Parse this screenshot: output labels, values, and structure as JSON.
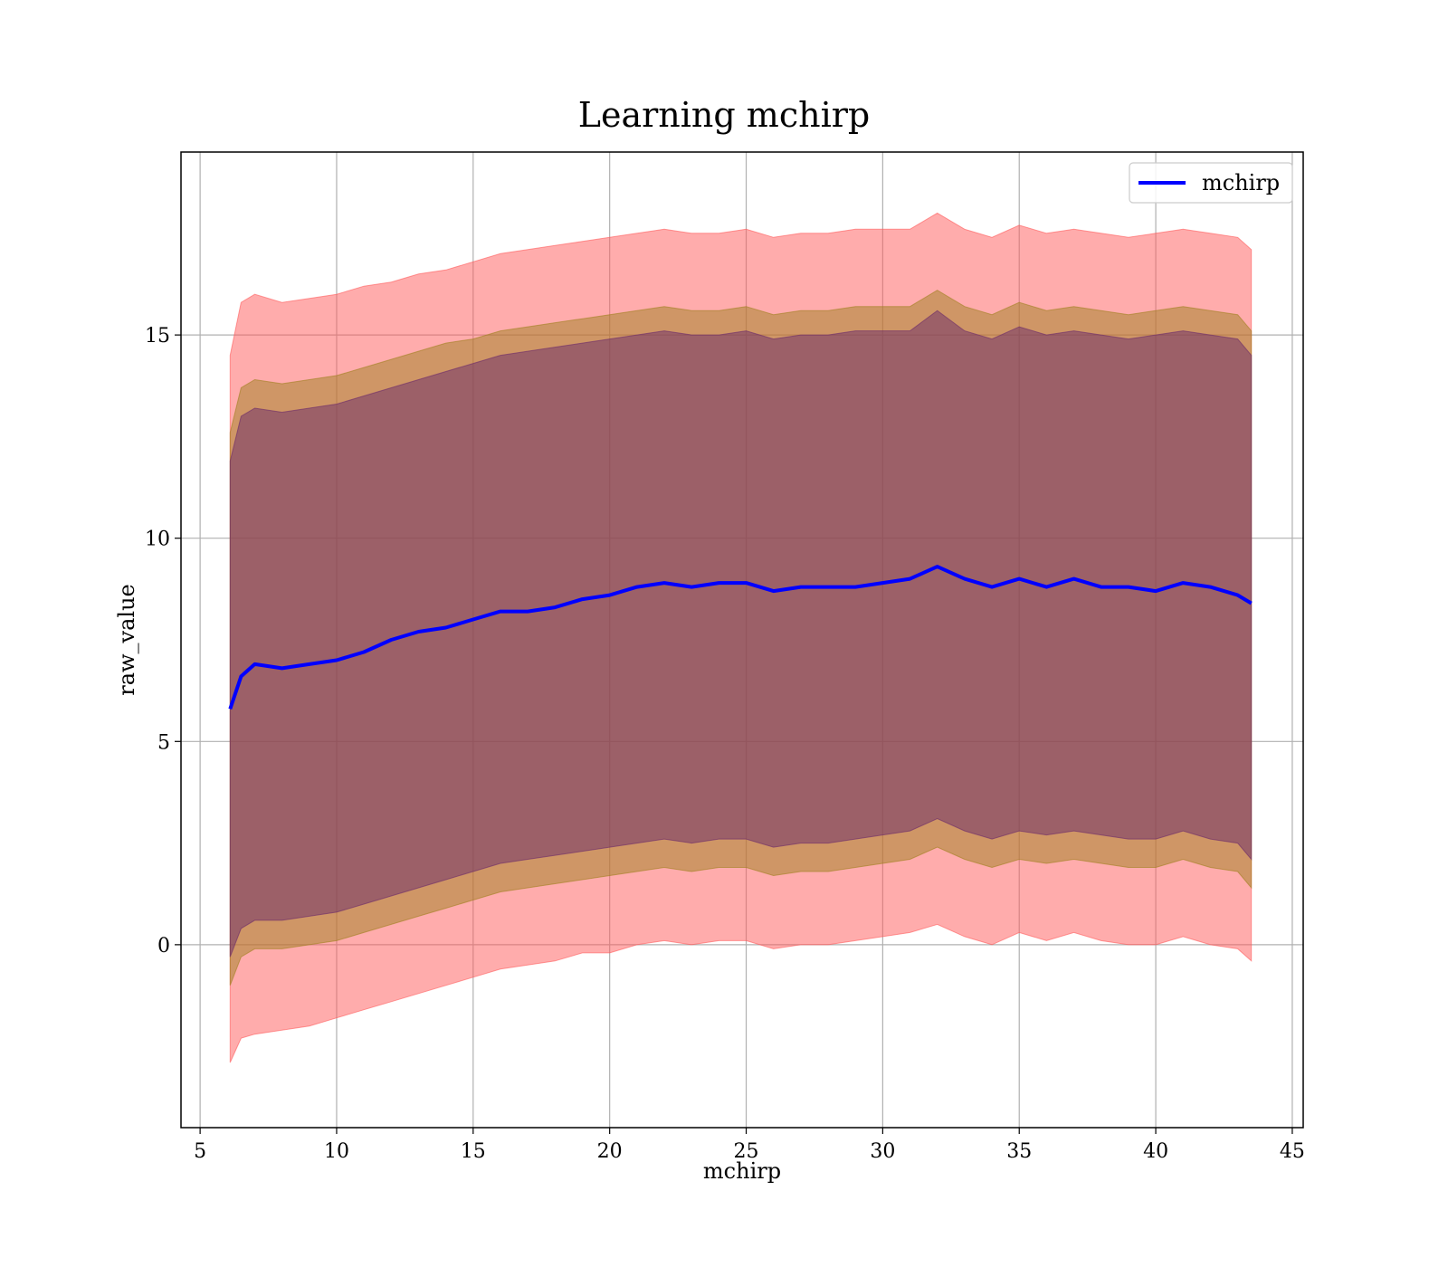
{
  "chart_data": {
    "type": "area",
    "title": "Learning mchirp",
    "xlabel": "mchirp",
    "ylabel": "raw_value",
    "xlim": [
      4.3,
      45.4
    ],
    "ylim": [
      -4.5,
      19.5
    ],
    "xticks": [
      5,
      10,
      15,
      20,
      25,
      30,
      35,
      40,
      45
    ],
    "yticks": [
      0,
      5,
      10,
      15
    ],
    "grid": true,
    "legend": {
      "position": "top-right",
      "entries": [
        "mchirp"
      ]
    },
    "x": [
      6.1,
      6.5,
      7,
      8,
      9,
      10,
      11,
      12,
      13,
      14,
      15,
      16,
      17,
      18,
      19,
      20,
      21,
      22,
      23,
      24,
      25,
      26,
      27,
      28,
      29,
      30,
      31,
      32,
      33,
      34,
      35,
      36,
      37,
      38,
      39,
      40,
      41,
      42,
      43,
      43.5
    ],
    "series": [
      {
        "name": "mchirp",
        "color": "#0000ff",
        "role": "mean",
        "values": [
          5.8,
          6.6,
          6.9,
          6.8,
          6.9,
          7.0,
          7.2,
          7.5,
          7.7,
          7.8,
          8.0,
          8.2,
          8.2,
          8.3,
          8.5,
          8.6,
          8.8,
          8.9,
          8.8,
          8.9,
          8.9,
          8.7,
          8.8,
          8.8,
          8.8,
          8.9,
          9.0,
          9.3,
          9.0,
          8.8,
          9.0,
          8.8,
          9.0,
          8.8,
          8.8,
          8.7,
          8.9,
          8.8,
          8.6,
          8.4
        ]
      }
    ],
    "bands": [
      {
        "color": "#ff5a5a",
        "opacity": 0.5,
        "upper": [
          14.5,
          15.8,
          16.0,
          15.8,
          15.9,
          16.0,
          16.2,
          16.3,
          16.5,
          16.6,
          16.8,
          17.0,
          17.1,
          17.2,
          17.3,
          17.4,
          17.5,
          17.6,
          17.5,
          17.5,
          17.6,
          17.4,
          17.5,
          17.5,
          17.6,
          17.6,
          17.6,
          18.0,
          17.6,
          17.4,
          17.7,
          17.5,
          17.6,
          17.5,
          17.4,
          17.5,
          17.6,
          17.5,
          17.4,
          17.1
        ],
        "lower": [
          -2.9,
          -2.3,
          -2.2,
          -2.1,
          -2.0,
          -1.8,
          -1.6,
          -1.4,
          -1.2,
          -1.0,
          -0.8,
          -0.6,
          -0.5,
          -0.4,
          -0.2,
          -0.2,
          0.0,
          0.1,
          0.0,
          0.1,
          0.1,
          -0.1,
          0.0,
          0.0,
          0.1,
          0.2,
          0.3,
          0.5,
          0.2,
          0.0,
          0.3,
          0.1,
          0.3,
          0.1,
          0.0,
          0.0,
          0.2,
          0.0,
          -0.1,
          -0.4
        ]
      },
      {
        "color": "#a08020",
        "opacity": 0.5,
        "upper": [
          12.6,
          13.7,
          13.9,
          13.8,
          13.9,
          14.0,
          14.2,
          14.4,
          14.6,
          14.8,
          14.9,
          15.1,
          15.2,
          15.3,
          15.4,
          15.5,
          15.6,
          15.7,
          15.6,
          15.6,
          15.7,
          15.5,
          15.6,
          15.6,
          15.7,
          15.7,
          15.7,
          16.1,
          15.7,
          15.5,
          15.8,
          15.6,
          15.7,
          15.6,
          15.5,
          15.6,
          15.7,
          15.6,
          15.5,
          15.1
        ],
        "lower": [
          -1.0,
          -0.3,
          -0.1,
          -0.1,
          0.0,
          0.1,
          0.3,
          0.5,
          0.7,
          0.9,
          1.1,
          1.3,
          1.4,
          1.5,
          1.6,
          1.7,
          1.8,
          1.9,
          1.8,
          1.9,
          1.9,
          1.7,
          1.8,
          1.8,
          1.9,
          2.0,
          2.1,
          2.4,
          2.1,
          1.9,
          2.1,
          2.0,
          2.1,
          2.0,
          1.9,
          1.9,
          2.1,
          1.9,
          1.8,
          1.4
        ]
      },
      {
        "color": "#6a2a6a",
        "opacity": 0.5,
        "upper": [
          11.9,
          13.0,
          13.2,
          13.1,
          13.2,
          13.3,
          13.5,
          13.7,
          13.9,
          14.1,
          14.3,
          14.5,
          14.6,
          14.7,
          14.8,
          14.9,
          15.0,
          15.1,
          15.0,
          15.0,
          15.1,
          14.9,
          15.0,
          15.0,
          15.1,
          15.1,
          15.1,
          15.6,
          15.1,
          14.9,
          15.2,
          15.0,
          15.1,
          15.0,
          14.9,
          15.0,
          15.1,
          15.0,
          14.9,
          14.5
        ],
        "lower": [
          -0.3,
          0.4,
          0.6,
          0.6,
          0.7,
          0.8,
          1.0,
          1.2,
          1.4,
          1.6,
          1.8,
          2.0,
          2.1,
          2.2,
          2.3,
          2.4,
          2.5,
          2.6,
          2.5,
          2.6,
          2.6,
          2.4,
          2.5,
          2.5,
          2.6,
          2.7,
          2.8,
          3.1,
          2.8,
          2.6,
          2.8,
          2.7,
          2.8,
          2.7,
          2.6,
          2.6,
          2.8,
          2.6,
          2.5,
          2.1
        ]
      }
    ]
  }
}
